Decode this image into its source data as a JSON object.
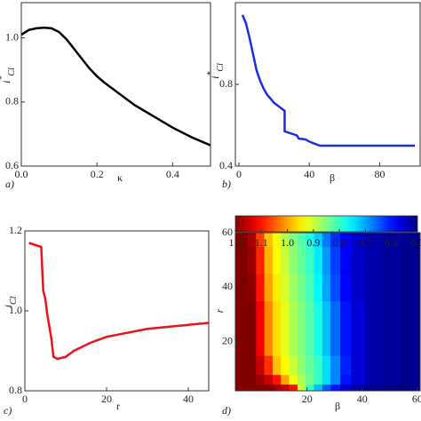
{
  "chart_data": [
    {
      "type": "line",
      "panel": "a)",
      "x_label": "κ",
      "y_label": {
        "base": "i",
        "sup": "*",
        "sub": "Cl"
      },
      "color": "#000000",
      "x": [
        0,
        0.02,
        0.04,
        0.06,
        0.08,
        0.1,
        0.12,
        0.15,
        0.18,
        0.2,
        0.22,
        0.26,
        0.3,
        0.35,
        0.4,
        0.45,
        0.5
      ],
      "values": [
        1.01,
        1.025,
        1.03,
        1.032,
        1.03,
        1.018,
        0.995,
        0.95,
        0.905,
        0.88,
        0.86,
        0.825,
        0.79,
        0.755,
        0.72,
        0.69,
        0.665
      ],
      "xlim": [
        0,
        0.5
      ],
      "ylim": [
        0.6,
        1.11
      ],
      "xticks": [
        {
          "value": 0,
          "label": "0.0"
        },
        0.2,
        0.4
      ],
      "yticks": [
        0.6,
        0.8,
        {
          "value": 1,
          "label": "1.0"
        }
      ]
    },
    {
      "type": "line",
      "panel": "b)",
      "x_label": "β",
      "y_label": {
        "base": "i",
        "sup": "*",
        "sub": "Cl"
      },
      "color": "#1a2ee0",
      "x": [
        2,
        4,
        6,
        8,
        10,
        12,
        14,
        16,
        20,
        26,
        26,
        33,
        34,
        38,
        40,
        46,
        60,
        80,
        100
      ],
      "values": [
        1.14,
        1.1,
        1.03,
        0.95,
        0.87,
        0.82,
        0.78,
        0.75,
        0.71,
        0.67,
        0.57,
        0.55,
        0.535,
        0.53,
        0.52,
        0.5,
        0.5,
        0.5,
        0.5
      ],
      "xlim": [
        -2,
        103
      ],
      "ylim": [
        0.4,
        1.2
      ],
      "xticks": [
        0,
        40,
        80
      ],
      "yticks": [
        0.4,
        0.8
      ]
    },
    {
      "type": "line",
      "panel": "c)",
      "x_label": "r",
      "y_label": {
        "base": "i",
        "sub": "Cl"
      },
      "color": "#e8141a",
      "x": [
        1,
        4,
        4.5,
        5,
        5.5,
        6,
        6.5,
        7,
        8,
        10,
        12,
        16,
        20,
        30,
        40,
        45
      ],
      "values": [
        1.17,
        1.16,
        1.05,
        1.03,
        0.99,
        0.96,
        0.93,
        0.885,
        0.88,
        0.885,
        0.9,
        0.92,
        0.935,
        0.955,
        0.965,
        0.97
      ],
      "xlim": [
        0,
        45
      ],
      "ylim": [
        0.8,
        1.2
      ],
      "xticks": [
        0,
        20,
        40
      ],
      "yticks": [
        0.8,
        {
          "value": 1,
          "label": "1.0"
        },
        1.2
      ]
    },
    {
      "type": "heatmap",
      "panel": "d)",
      "x_label": "β",
      "y_label": {
        "base": "r"
      },
      "x": [
        -3,
        0,
        3,
        6,
        9,
        12,
        15,
        18,
        21,
        24,
        27,
        30,
        34,
        38,
        44,
        50,
        58
      ],
      "y": [
        3,
        6,
        10,
        20,
        30,
        40,
        50,
        60
      ],
      "z": [
        [
          1.2,
          1.2,
          1.2,
          1.2,
          1.18,
          1.15,
          1.1,
          0.9,
          0.8,
          0.72,
          0.65,
          0.6,
          0.55,
          0.52,
          0.51,
          0.5,
          0.5
        ],
        [
          1.2,
          1.2,
          1.18,
          1.15,
          1.1,
          1.0,
          0.93,
          0.88,
          0.84,
          0.8,
          0.74,
          0.68,
          0.6,
          0.56,
          0.53,
          0.52,
          0.51
        ],
        [
          1.2,
          1.2,
          1.15,
          1.08,
          0.98,
          0.94,
          0.9,
          0.86,
          0.83,
          0.8,
          0.74,
          0.68,
          0.61,
          0.56,
          0.53,
          0.52,
          0.51
        ],
        [
          1.2,
          1.2,
          1.12,
          1.02,
          0.96,
          0.92,
          0.88,
          0.85,
          0.82,
          0.78,
          0.72,
          0.66,
          0.6,
          0.56,
          0.53,
          0.52,
          0.51
        ],
        [
          1.2,
          1.2,
          1.12,
          1.02,
          0.96,
          0.92,
          0.88,
          0.85,
          0.82,
          0.78,
          0.72,
          0.66,
          0.6,
          0.56,
          0.53,
          0.52,
          0.51
        ],
        [
          1.2,
          1.19,
          1.1,
          1.0,
          0.95,
          0.91,
          0.87,
          0.84,
          0.81,
          0.76,
          0.7,
          0.64,
          0.59,
          0.55,
          0.53,
          0.52,
          0.51
        ],
        [
          1.2,
          1.18,
          1.09,
          0.99,
          0.94,
          0.9,
          0.86,
          0.83,
          0.8,
          0.75,
          0.69,
          0.63,
          0.58,
          0.55,
          0.53,
          0.52,
          0.51
        ],
        [
          1.2,
          1.17,
          1.07,
          0.98,
          0.93,
          0.89,
          0.85,
          0.82,
          0.78,
          0.73,
          0.67,
          0.62,
          0.58,
          0.55,
          0.53,
          0.52,
          0.51
        ]
      ],
      "zlim": [
        0.5,
        1.2
      ],
      "zticks": [
        1.2,
        1.1,
        {
          "value": 1,
          "label": "1.0"
        },
        0.9,
        0.8,
        0.7,
        0.6,
        0.5
      ],
      "xlim": [
        -6,
        61
      ],
      "ylim": [
        2,
        60
      ],
      "xticks": [
        20,
        40,
        60
      ],
      "yticks": [
        20,
        40,
        60
      ]
    }
  ]
}
